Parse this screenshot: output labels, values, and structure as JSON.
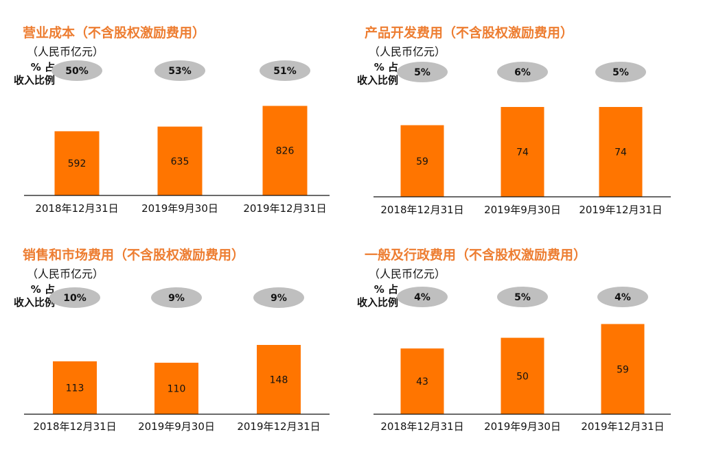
{
  "ratio_label_top": "% 占",
  "ratio_label_bottom": "收入比例",
  "chart_data": [
    {
      "type": "bar",
      "title": "营业成本（不含股权激励费用）",
      "unit": "（人民币亿元）",
      "categories": [
        "2018年12月31日",
        "2019年9月30日",
        "2019年12月31日"
      ],
      "values": [
        592,
        635,
        826
      ],
      "percent_of_revenue": [
        "50%",
        "53%",
        "51%"
      ],
      "color": "#FF7500"
    },
    {
      "type": "bar",
      "title": "产品开发费用（不含股权激励费用）",
      "unit": "（人民币亿元）",
      "categories": [
        "2018年12月31日",
        "2019年9月30日",
        "2019年12月31日"
      ],
      "values": [
        59,
        74,
        74
      ],
      "percent_of_revenue": [
        "5%",
        "6%",
        "5%"
      ],
      "color": "#FF7500"
    },
    {
      "type": "bar",
      "title": "销售和市场费用（不含股权激励费用）",
      "unit": "（人民币亿元）",
      "categories": [
        "2018年12月31日",
        "2019年9月30日",
        "2019年12月31日"
      ],
      "values": [
        113,
        110,
        148
      ],
      "percent_of_revenue": [
        "10%",
        "9%",
        "9%"
      ],
      "color": "#FF7500"
    },
    {
      "type": "bar",
      "title": "一般及行政费用（不含股权激励费用）",
      "unit": "（人民币亿元）",
      "categories": [
        "2018年12月31日",
        "2019年9月30日",
        "2019年12月31日"
      ],
      "values": [
        43,
        50,
        59
      ],
      "percent_of_revenue": [
        "4%",
        "5%",
        "4%"
      ],
      "color": "#FF7500"
    }
  ]
}
